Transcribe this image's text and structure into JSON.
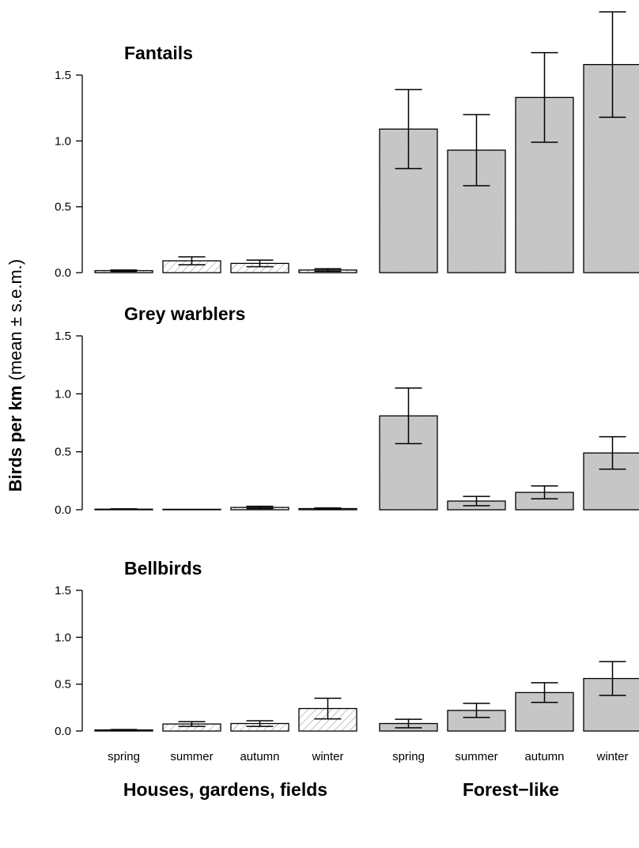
{
  "chart_data": {
    "type": "bar",
    "ylabel_bold": "Birds per km",
    "ylabel_rest": " (mean ± s.e.m.)",
    "yticks": [
      0.0,
      0.5,
      1.0,
      1.5
    ],
    "ytick_labels": [
      "0.0",
      "0.5",
      "1.0",
      "1.5"
    ],
    "categories": [
      "spring",
      "summer",
      "autumn",
      "winter"
    ],
    "groups": [
      {
        "label": "Houses, gardens, fields",
        "fill": "#ffffff",
        "hatch_color": "#999999"
      },
      {
        "label": "Forest−like",
        "fill": "#c8c8c8",
        "hatch_color": "#b4b4b4"
      }
    ],
    "panels": [
      {
        "title": "Fantails",
        "series": [
          {
            "group": "Houses, gardens, fields",
            "values": [
              0.015,
              0.09,
              0.07,
              0.02
            ],
            "err": [
              0.005,
              0.03,
              0.025,
              0.01
            ]
          },
          {
            "group": "Forest−like",
            "values": [
              1.09,
              0.93,
              1.33,
              1.58
            ],
            "err": [
              0.3,
              0.27,
              0.34,
              0.4
            ]
          }
        ]
      },
      {
        "title": "Grey warblers",
        "series": [
          {
            "group": "Houses, gardens, fields",
            "values": [
              0.005,
              0.0,
              0.02,
              0.01
            ],
            "err": [
              0.003,
              0.0,
              0.01,
              0.005
            ]
          },
          {
            "group": "Forest−like",
            "values": [
              0.81,
              0.075,
              0.15,
              0.49
            ],
            "err": [
              0.24,
              0.04,
              0.055,
              0.14
            ]
          }
        ]
      },
      {
        "title": "Bellbirds",
        "series": [
          {
            "group": "Houses, gardens, fields",
            "values": [
              0.012,
              0.075,
              0.08,
              0.24
            ],
            "err": [
              0.004,
              0.025,
              0.03,
              0.11
            ]
          },
          {
            "group": "Forest−like",
            "values": [
              0.08,
              0.22,
              0.41,
              0.56
            ],
            "err": [
              0.045,
              0.075,
              0.105,
              0.18
            ]
          }
        ]
      }
    ],
    "ylim": [
      0,
      1.5
    ]
  }
}
